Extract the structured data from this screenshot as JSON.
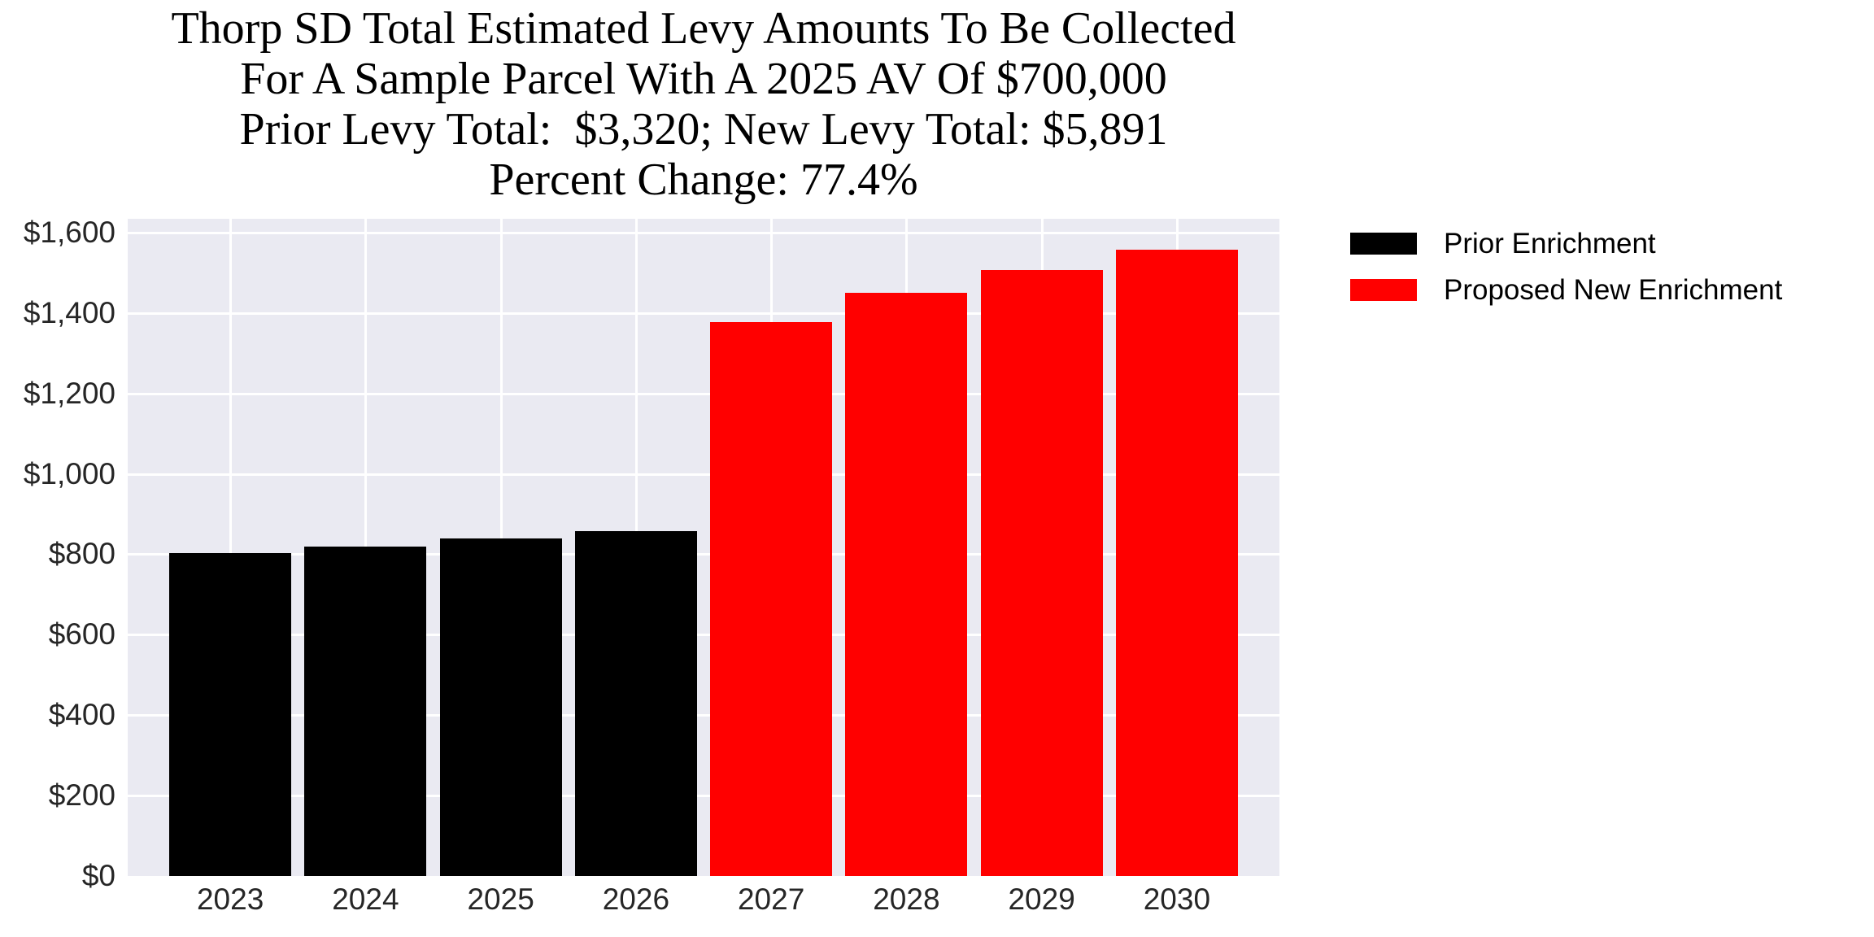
{
  "figure": {
    "background": "#ffffff",
    "plot_background": "#eaeaf2",
    "grid_color": "#ffffff",
    "tick_color": "#262626"
  },
  "title": {
    "text": "Thorp SD Total Estimated Levy Amounts To Be Collected\nFor A Sample Parcel With A 2025 AV Of $700,000\nPrior Levy Total:  $3,320; New Levy Total: $5,891\nPercent Change: 77.4%",
    "prior_levy_total": "$3,320",
    "new_levy_total": "$5,891",
    "percent_change": "77.4%",
    "sample_parcel_av": "$700,000"
  },
  "chart_data": {
    "type": "bar",
    "categories": [
      "2023",
      "2024",
      "2025",
      "2026",
      "2027",
      "2028",
      "2029",
      "2030"
    ],
    "series": [
      {
        "name": "Prior Enrichment",
        "color": "#000000",
        "values": [
          803,
          819,
          840,
          858,
          null,
          null,
          null,
          null
        ]
      },
      {
        "name": "Proposed New Enrichment",
        "color": "#ff0000",
        "values": [
          null,
          null,
          null,
          null,
          1378,
          1450,
          1506,
          1557
        ]
      }
    ],
    "title": "Thorp SD Total Estimated Levy Amounts To Be Collected For A Sample Parcel With A 2025 AV Of $700,000 Prior Levy Total: $3,320; New Levy Total: $5,891 Percent Change: 77.4%",
    "xlabel": "",
    "ylabel": "",
    "ylim": [
      0,
      1634
    ],
    "yticks": [
      0,
      200,
      400,
      600,
      800,
      1000,
      1200,
      1400,
      1600
    ],
    "ytick_prefix": "$",
    "grid": true,
    "legend_position": "outside-upper-right"
  }
}
